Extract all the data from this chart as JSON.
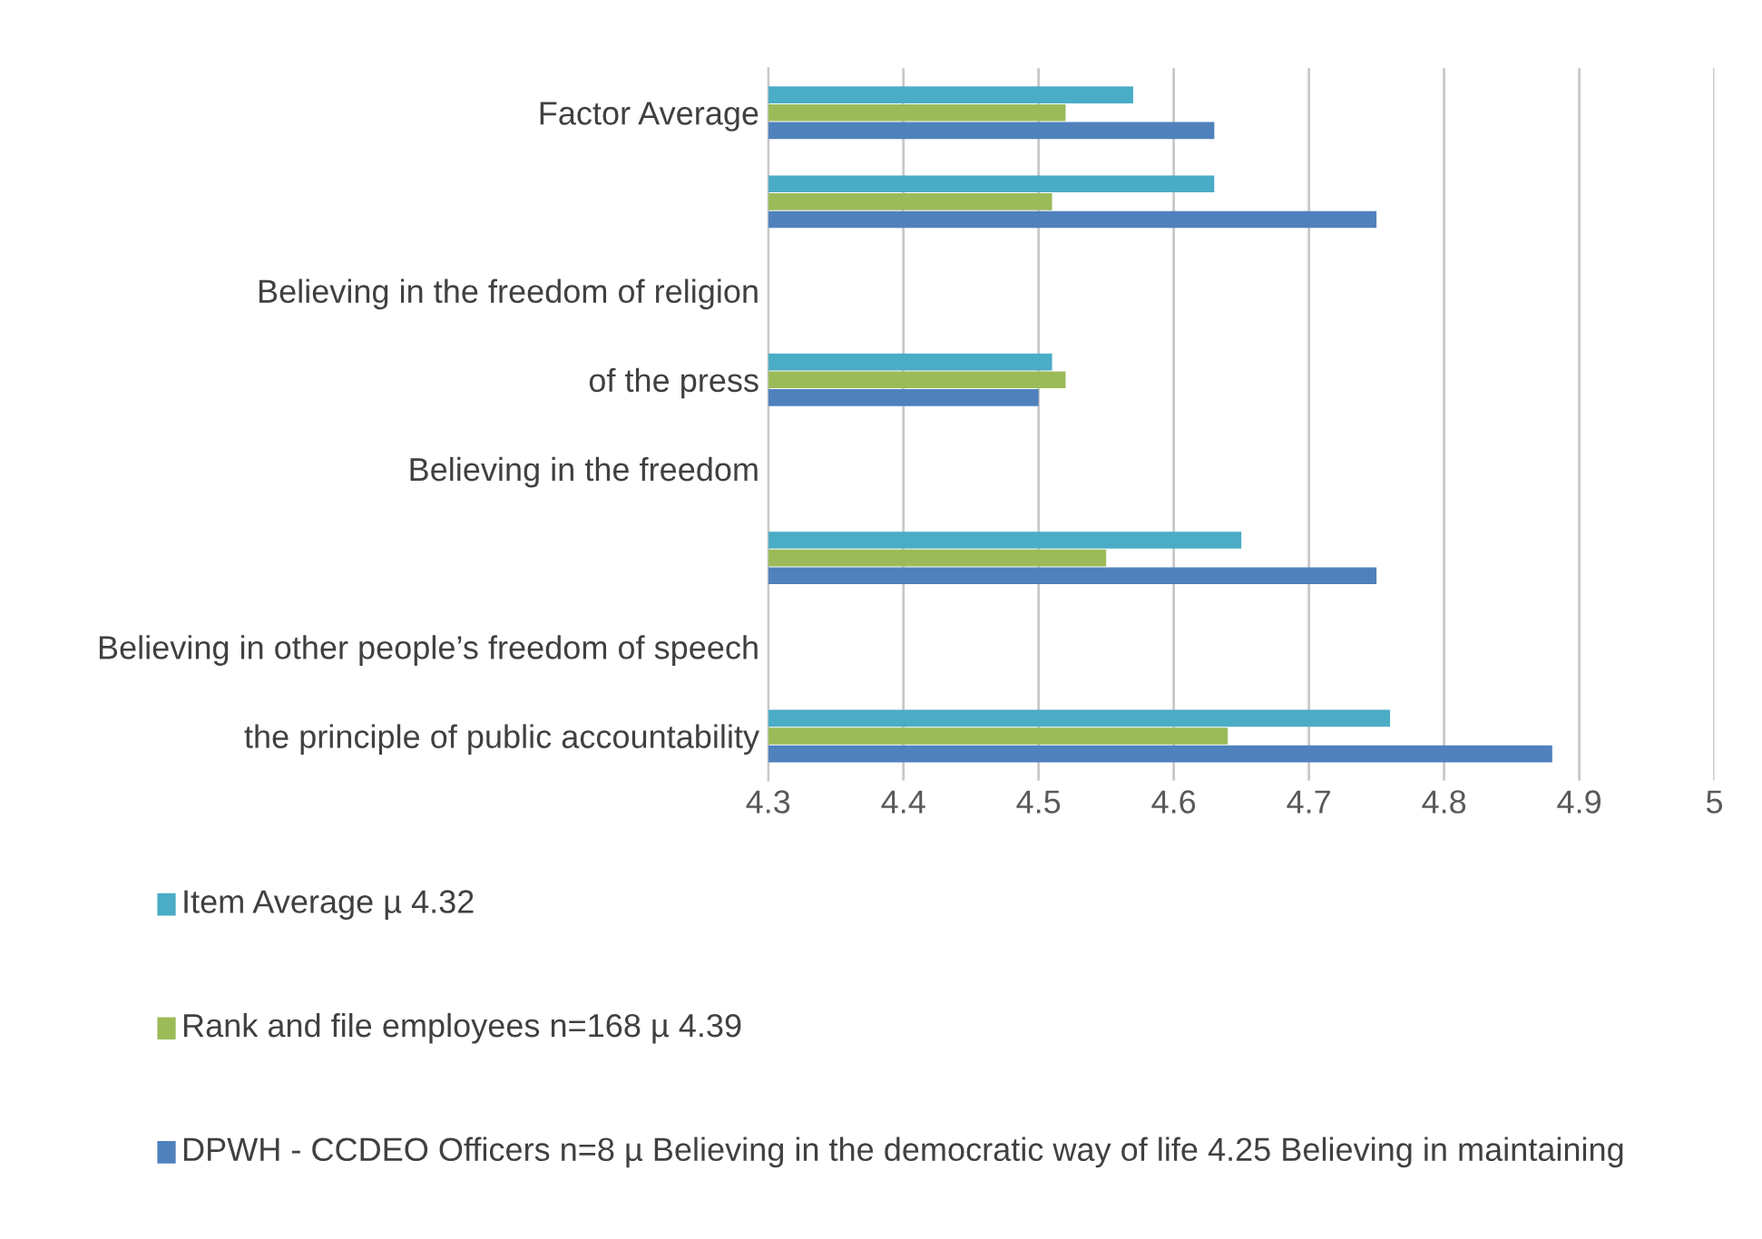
{
  "chart_data": {
    "type": "bar",
    "orientation": "horizontal",
    "categories": [
      "Factor Average",
      null,
      "Believing in the freedom of religion",
      "of the press",
      "Believing in the freedom",
      null,
      "Believing in other people’s freedom of speech",
      "the principle of public accountability"
    ],
    "series": [
      {
        "name": "Item Average µ 4.32",
        "color": "#4bacc6",
        "values": [
          4.57,
          4.63,
          null,
          4.51,
          null,
          4.65,
          null,
          4.76
        ]
      },
      {
        "name": "Rank and file employees n=168 µ 4.39",
        "color": "#9bbb59",
        "values": [
          4.52,
          4.51,
          null,
          4.52,
          null,
          4.55,
          null,
          4.64
        ]
      },
      {
        "name": "DPWH - CCDEO Officers n=8 µ Believing in the democratic way of life 4.25 Believing in maintaining",
        "color": "#4f81bd",
        "values": [
          4.63,
          4.75,
          null,
          4.5,
          null,
          4.75,
          null,
          4.88
        ]
      }
    ],
    "xlim": [
      4.3,
      5
    ],
    "xticks": [
      4.3,
      4.4,
      4.5,
      4.6,
      4.7,
      4.8,
      4.9,
      5
    ],
    "grid": "x",
    "legend": "bottom"
  }
}
